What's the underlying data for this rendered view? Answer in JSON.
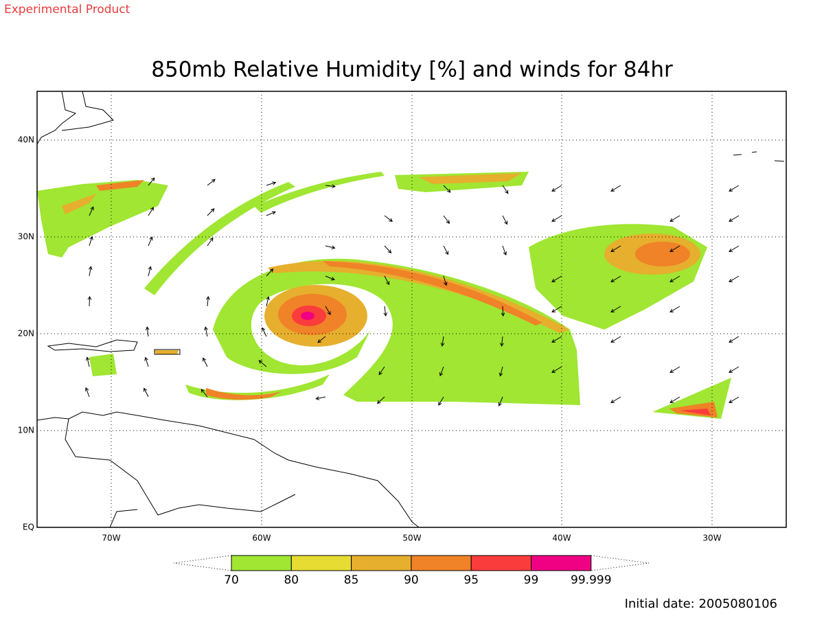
{
  "label": "Experimental Product",
  "title": "850mb Relative Humidity [%] and winds for 84hr",
  "map": {
    "lat_labels": [
      "EQ",
      "10N",
      "20N",
      "30N",
      "40N"
    ],
    "lon_labels": [
      "70W",
      "60W",
      "50W",
      "40W",
      "30W"
    ]
  },
  "colorbar": {
    "levels": [
      70,
      80,
      85,
      90,
      95,
      99,
      99.999
    ],
    "colors": [
      "#a0e632",
      "#e6dc32",
      "#e6af2d",
      "#f08228",
      "#fa3c3c",
      "#f00082"
    ]
  },
  "initial_date": "Initial date: 2005080106"
}
